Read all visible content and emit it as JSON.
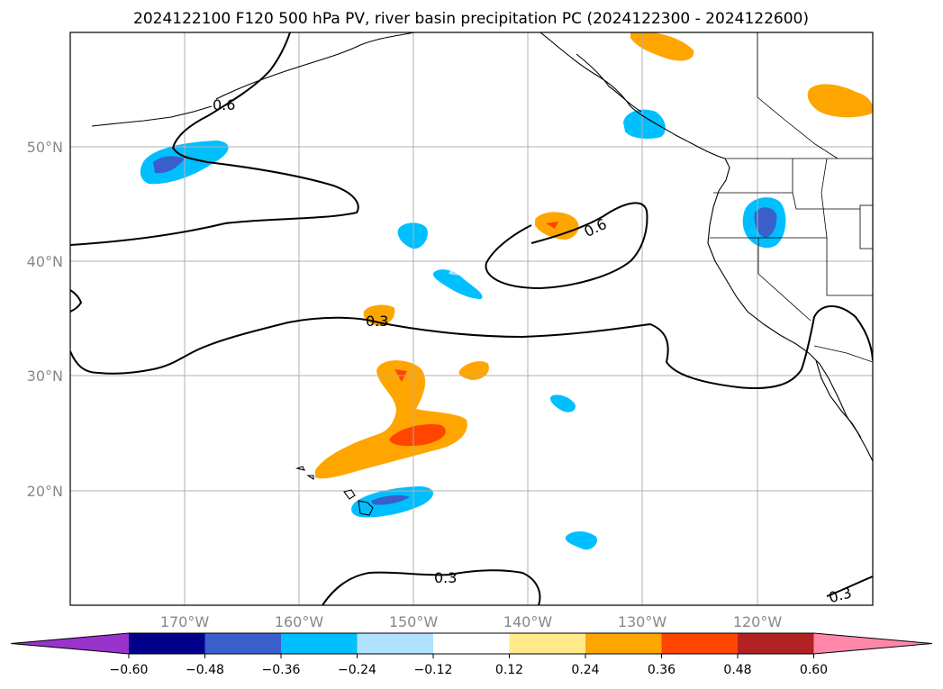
{
  "title": "2024122100 F120 500 hPa PV, river basin precipitation PC (2024122300 - 2024122600)",
  "map": {
    "lat_labels": [
      "50°N",
      "40°N",
      "30°N",
      "20°N"
    ],
    "lon_labels": [
      "170°W",
      "160°W",
      "150°W",
      "140°W",
      "130°W",
      "120°W"
    ],
    "pv_contour_labels": [
      "0.6",
      "0.6",
      "0.3",
      "0.3",
      "0.3"
    ],
    "gridlines": true
  },
  "colorbar": {
    "ticks": [
      "−0.60",
      "−0.48",
      "−0.36",
      "−0.24",
      "−0.12",
      "0.12",
      "0.24",
      "0.36",
      "0.48",
      "0.60"
    ],
    "colors": [
      "#9933cc",
      "#00008b",
      "#3a5fcd",
      "#00bfff",
      "#b0e2ff",
      "#ffffff",
      "#ffe98a",
      "#ffa500",
      "#ff4500",
      "#b22222",
      "#ff88aa"
    ],
    "extend": "both"
  }
}
